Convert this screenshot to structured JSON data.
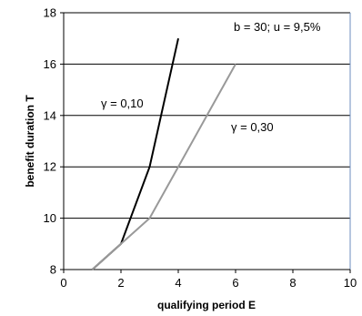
{
  "chart_data": {
    "type": "line",
    "xlabel": "qualifying period E",
    "ylabel": "benefit duration T",
    "xlim": [
      0,
      10
    ],
    "ylim": [
      8,
      18
    ],
    "xticks": [
      0,
      2,
      4,
      6,
      8,
      10
    ],
    "yticks": [
      8,
      10,
      12,
      14,
      16,
      18
    ],
    "grid": "horizontal",
    "annotation": "b = 30; u = 9,5%",
    "series": [
      {
        "name": "γ = 0,10",
        "color": "#000000",
        "x": [
          1,
          2,
          3,
          4
        ],
        "y": [
          8,
          9,
          12,
          17
        ]
      },
      {
        "name": "γ = 0,30",
        "color": "#999999",
        "x": [
          1,
          2,
          3,
          4,
          5,
          6
        ],
        "y": [
          8,
          9,
          10,
          12,
          14,
          16
        ]
      }
    ]
  }
}
